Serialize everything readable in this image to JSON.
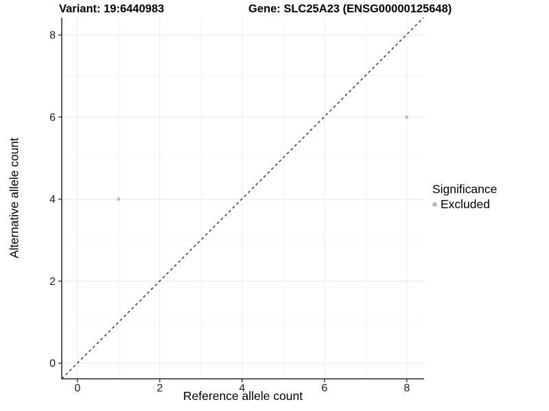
{
  "titles": {
    "variant": "Variant: 19:6440983",
    "gene": "Gene: SLC25A23 (ENSG00000125648)"
  },
  "chart_data": {
    "type": "scatter",
    "title_left": "Variant: 19:6440983",
    "title_right": "Gene: SLC25A23 (ENSG00000125648)",
    "xlabel": "Reference allele count",
    "ylabel": "Alternative allele count",
    "xlim": [
      -0.38,
      8.42
    ],
    "ylim": [
      -0.38,
      8.42
    ],
    "x_ticks": [
      0,
      2,
      4,
      6,
      8
    ],
    "y_ticks": [
      0,
      2,
      4,
      6,
      8
    ],
    "x_minor_ticks": [
      1,
      3,
      5,
      7
    ],
    "y_minor_ticks": [
      1,
      3,
      5,
      7
    ],
    "grid": "on",
    "reference_line": {
      "type": "identity",
      "style": "dashed",
      "color": "#1a1a1a"
    },
    "series": [
      {
        "name": "Excluded",
        "color": "#bdbdbd",
        "points": [
          {
            "x": 1,
            "y": 4
          },
          {
            "x": 8,
            "y": 6
          }
        ]
      }
    ],
    "legend": {
      "title": "Significance",
      "position": "right",
      "entries": [
        {
          "label": "Excluded",
          "color": "#bdbdbd"
        }
      ]
    }
  },
  "colors": {
    "background": "#ffffff",
    "grid_major": "#e8e8e8",
    "grid_minor": "#f3f3f3",
    "axis_line": "#474747",
    "tick_mark": "#333333",
    "tick_label": "#1a1a1a",
    "point": "#bdbdbd"
  }
}
